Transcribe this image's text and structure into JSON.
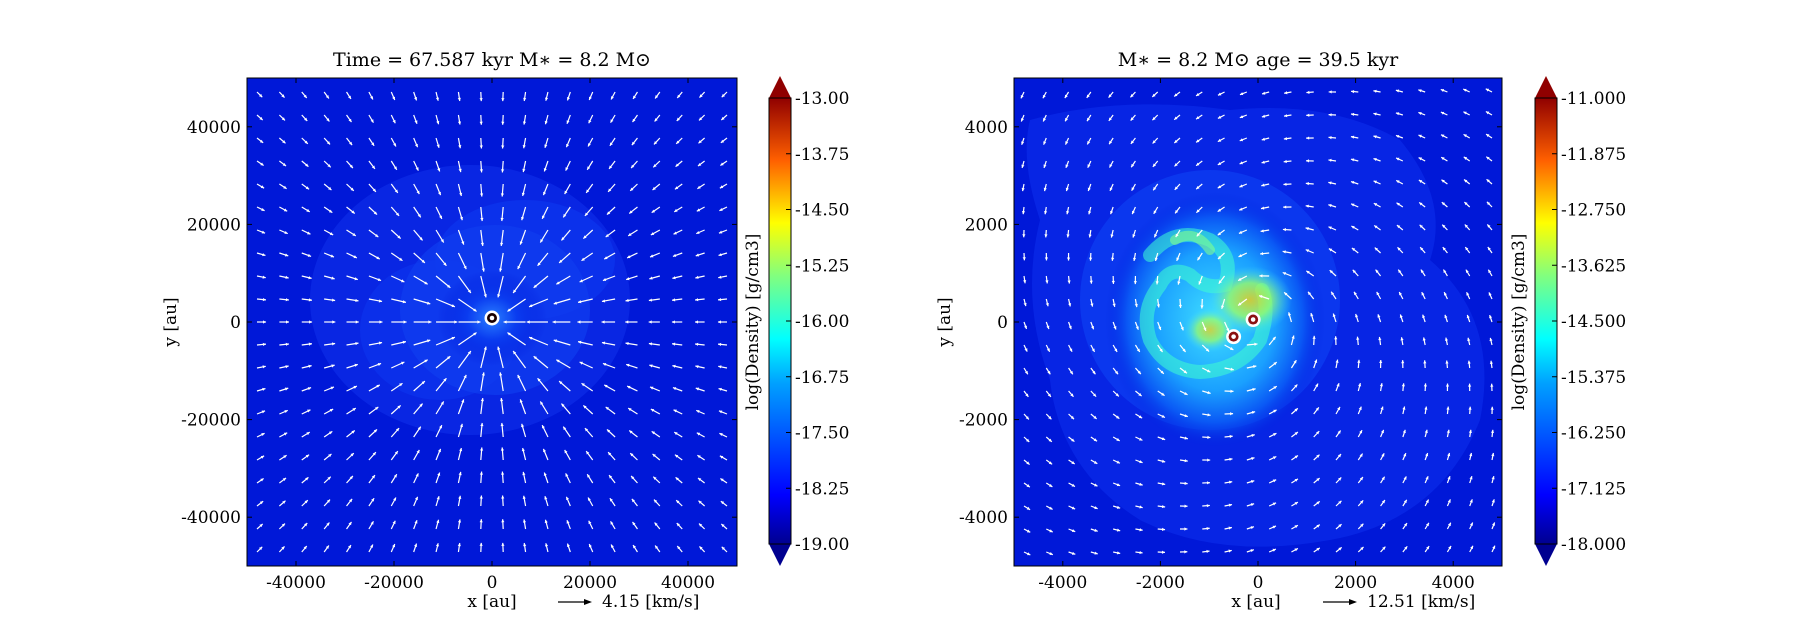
{
  "panels": [
    {
      "title": "Time = 67.587 kyr    M∗ = 8.2 M⊙",
      "xlabel": "x [au]",
      "ylabel": "y [au]",
      "xlim": [
        -50000,
        50000
      ],
      "ylim": [
        -50000,
        50000
      ],
      "xticks": [
        "-40000",
        "-20000",
        "0",
        "20000",
        "40000"
      ],
      "xtick_values": [
        -40000,
        -20000,
        0,
        20000,
        40000
      ],
      "yticks": [
        "40000",
        "20000",
        "0",
        "-20000",
        "-40000"
      ],
      "ytick_values": [
        40000,
        20000,
        0,
        -20000,
        -40000
      ],
      "velocity_key": "4.15 [km/s]",
      "colorbar_label": "log(Density) [g/cm3]",
      "colorbar_ticks": [
        "-13.00",
        "-13.75",
        "-14.50",
        "-15.25",
        "-16.00",
        "-16.75",
        "-17.50",
        "-18.25",
        "-19.00"
      ],
      "colorbar_range": [
        -19.0,
        -13.0
      ],
      "sinks": [
        {
          "x": 0,
          "y": 0
        }
      ],
      "flow": "infall"
    },
    {
      "title": "M∗ = 8.2 M⊙         age = 39.5 kyr",
      "xlabel": "x [au]",
      "ylabel": "y [au]",
      "xlim": [
        -5000,
        5000
      ],
      "ylim": [
        -5000,
        5000
      ],
      "xticks": [
        "-4000",
        "-2000",
        "0",
        "2000",
        "4000"
      ],
      "xtick_values": [
        -4000,
        -2000,
        0,
        2000,
        4000
      ],
      "yticks": [
        "4000",
        "2000",
        "0",
        "-2000",
        "-4000"
      ],
      "ytick_values": [
        4000,
        2000,
        0,
        -2000,
        -4000
      ],
      "velocity_key": "12.51 [km/s]",
      "colorbar_label": "log(Density) [g/cm3]",
      "colorbar_ticks": [
        "-11.000",
        "-11.875",
        "-12.750",
        "-13.625",
        "-14.500",
        "-15.375",
        "-16.250",
        "-17.125",
        "-18.000"
      ],
      "colorbar_range": [
        -18.0,
        -11.0
      ],
      "sinks": [
        {
          "x": -500,
          "y": -300
        },
        {
          "x": -100,
          "y": 50
        }
      ],
      "flow": "rotating"
    }
  ],
  "chart_data": [
    {
      "type": "heatmap",
      "title": "Time = 67.587 kyr    M∗ = 8.2 M⊙",
      "xlabel": "x [au]",
      "ylabel": "y [au]",
      "xlim": [
        -50000,
        50000
      ],
      "ylim": [
        -50000,
        50000
      ],
      "colorbar": {
        "label": "log(Density) [g/cm3]",
        "range": [
          -19.0,
          -13.0
        ],
        "extend": "both"
      },
      "velocity_reference": "4.15 [km/s]",
      "sink_particles": [
        {
          "x": 0,
          "y": 0
        }
      ]
    },
    {
      "type": "heatmap",
      "title": "M∗ = 8.2 M⊙         age = 39.5 kyr",
      "xlabel": "x [au]",
      "ylabel": "y [au]",
      "xlim": [
        -5000,
        5000
      ],
      "ylim": [
        -5000,
        5000
      ],
      "colorbar": {
        "label": "log(Density) [g/cm3]",
        "range": [
          -18.0,
          -11.0
        ],
        "extend": "both"
      },
      "velocity_reference": "12.51 [km/s]",
      "sink_particles": [
        {
          "x": -500,
          "y": -300
        },
        {
          "x": -100,
          "y": 50
        }
      ]
    }
  ]
}
